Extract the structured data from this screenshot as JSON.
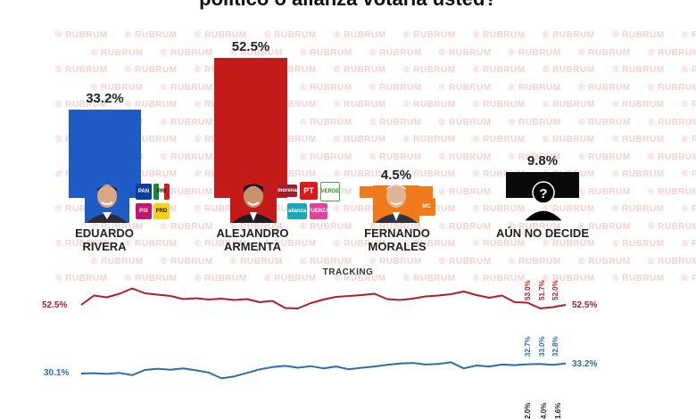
{
  "chart_data": {
    "type": "bar",
    "title": "político o alianza votaría usted?",
    "categories": [
      "EDUARDO RIVERA",
      "ALEJANDRO ARMENTA",
      "FERNANDO MORALES",
      "AÚN NO DECIDE"
    ],
    "values": [
      33.2,
      52.5,
      4.5,
      9.8
    ],
    "value_labels": [
      "33.2%",
      "52.5%",
      "4.5%",
      "9.8%"
    ],
    "name_lines": [
      [
        "EDUARDO",
        "RIVERA"
      ],
      [
        "ALEJANDRO",
        "ARMENTA"
      ],
      [
        "FERNANDO",
        "MORALES"
      ],
      [
        "AÚN NO DECIDE"
      ]
    ],
    "colors": [
      "#1f5bc4",
      "#c41a1a",
      "#f07a1a",
      "#0a0a0a"
    ],
    "party_logos": {
      "rivera": [
        "PAN",
        "PRI",
        "PSI",
        "PRD"
      ],
      "armenta": [
        "morena",
        "PT",
        "VERDE",
        "alianza",
        "FUERZA"
      ],
      "morales": [
        "MC"
      ]
    },
    "tracking": {
      "title": "TRACKING",
      "series": [
        {
          "color": "#b01e2a",
          "start_label": "52.5%",
          "end_label": "52.5%",
          "values": [
            52.5,
            54.6,
            54.2,
            55.0,
            56.2,
            55.1,
            54.8,
            54.5,
            53.8,
            54.0,
            53.7,
            53.9,
            53.6,
            53.8,
            53.1,
            53.4,
            51.8,
            51.7,
            52.9,
            53.7,
            54.3,
            54.5,
            54.7,
            55.0,
            53.8,
            53.6,
            53.9,
            54.4,
            54.6,
            54.9,
            55.5,
            54.7,
            54.1,
            54.6,
            53.1,
            53.0,
            51.7,
            52.0,
            52.5
          ],
          "annotations": [
            "53.0%",
            "51.7%",
            "52.0%"
          ]
        },
        {
          "color": "#2a6fa8",
          "start_label": "30.1%",
          "end_label": "33.2%",
          "values": [
            30.1,
            30.2,
            30.0,
            30.3,
            29.6,
            31.2,
            31.6,
            31.3,
            31.7,
            31.1,
            30.4,
            28.6,
            29.2,
            30.3,
            31.4,
            32.1,
            32.5,
            31.9,
            32.4,
            31.7,
            32.3,
            31.4,
            31.9,
            32.3,
            32.8,
            33.2,
            33.4,
            32.9,
            33.1,
            33.6,
            31.7,
            32.6,
            32.3,
            32.9,
            32.7,
            33.0,
            33.1,
            32.8,
            33.2
          ],
          "annotations": [
            "32.7%",
            "33.0%",
            "32.8%"
          ]
        }
      ],
      "third_annotations": [
        "2.0%",
        "4.0%",
        "1.6%"
      ]
    }
  },
  "watermark": "RUBRUM"
}
